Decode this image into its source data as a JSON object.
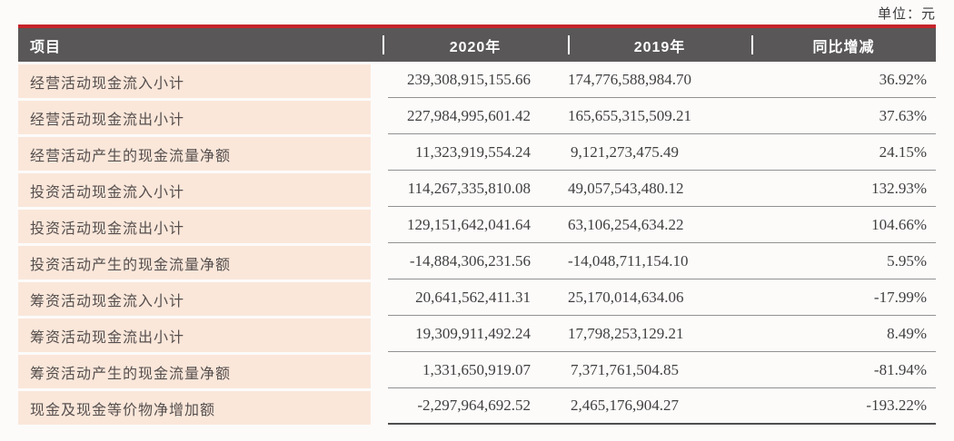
{
  "meta": {
    "unit_label": "单位：元"
  },
  "colors": {
    "accent_red": "#c5242a",
    "header_gray": "#595757",
    "row_peach": "#fae7da"
  },
  "table": {
    "columns": [
      "项目",
      "2020年",
      "2019年",
      "同比增减"
    ],
    "rows": [
      {
        "label": "经营活动现金流入小计",
        "y2020": "239,308,915,155.66",
        "y2019": "174,776,588,984.70",
        "change": "36.92%"
      },
      {
        "label": "经营活动现金流出小计",
        "y2020": "227,984,995,601.42",
        "y2019": "165,655,315,509.21",
        "change": "37.63%"
      },
      {
        "label": "经营活动产生的现金流量净额",
        "y2020": "11,323,919,554.24",
        "y2019": "9,121,273,475.49",
        "change": "24.15%"
      },
      {
        "label": "投资活动现金流入小计",
        "y2020": "114,267,335,810.08",
        "y2019": "49,057,543,480.12",
        "change": "132.93%"
      },
      {
        "label": "投资活动现金流出小计",
        "y2020": "129,151,642,041.64",
        "y2019": "63,106,254,634.22",
        "change": "104.66%"
      },
      {
        "label": "投资活动产生的现金流量净额",
        "y2020": "-14,884,306,231.56",
        "y2019": "-14,048,711,154.10",
        "change": "5.95%"
      },
      {
        "label": "筹资活动现金流入小计",
        "y2020": "20,641,562,411.31",
        "y2019": "25,170,014,634.06",
        "change": "-17.99%"
      },
      {
        "label": "筹资活动现金流出小计",
        "y2020": "19,309,911,492.24",
        "y2019": "17,798,253,129.21",
        "change": "8.49%"
      },
      {
        "label": "筹资活动产生的现金流量净额",
        "y2020": "1,331,650,919.07",
        "y2019": "7,371,761,504.85",
        "change": "-81.94%"
      },
      {
        "label": "现金及现金等价物净增加额",
        "y2020": "-2,297,964,692.52",
        "y2019": "2,465,176,904.27",
        "change": "-193.22%"
      }
    ]
  }
}
